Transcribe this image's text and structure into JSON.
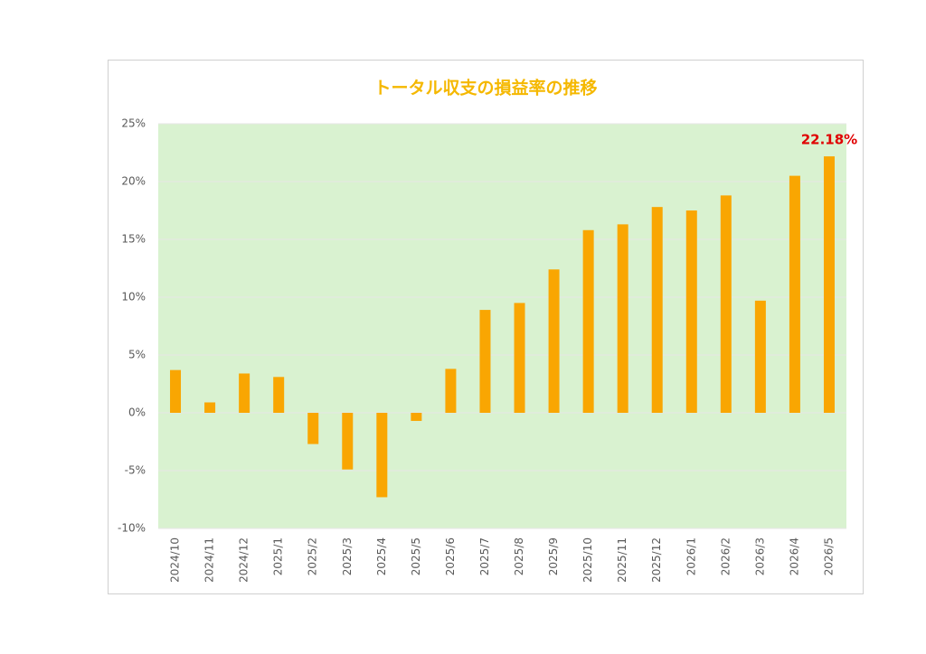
{
  "chart_data": {
    "type": "bar",
    "title": "トータル収支の損益率の推移",
    "categories": [
      "2024/10",
      "2024/11",
      "2024/12",
      "2025/1",
      "2025/2",
      "2025/3",
      "2025/4",
      "2025/5",
      "2025/6",
      "2025/7",
      "2025/8",
      "2025/9",
      "2025/10",
      "2025/11",
      "2025/12",
      "2026/1",
      "2026/2",
      "2026/3",
      "2026/4",
      "2026/5"
    ],
    "values": [
      3.7,
      0.9,
      3.4,
      3.1,
      -2.7,
      -4.9,
      -7.3,
      -0.7,
      3.8,
      8.9,
      9.5,
      12.4,
      15.8,
      16.3,
      17.8,
      17.5,
      18.8,
      9.7,
      20.5,
      22.18
    ],
    "value_labels": [
      null,
      null,
      null,
      null,
      null,
      null,
      null,
      null,
      null,
      null,
      null,
      null,
      null,
      null,
      null,
      null,
      null,
      null,
      null,
      "22.18%"
    ],
    "color": "#f9a602",
    "label_color": "#e00000",
    "plot_background": "#d9f2d0",
    "ylim": [
      -10,
      25
    ],
    "yticks": [
      {
        "value": -10,
        "label": "-10%"
      },
      {
        "value": -5,
        "label": "-5%"
      },
      {
        "value": 0,
        "label": "0%"
      },
      {
        "value": 5,
        "label": "5%"
      },
      {
        "value": 10,
        "label": "10%"
      },
      {
        "value": 15,
        "label": "15%"
      },
      {
        "value": 20,
        "label": "20%"
      },
      {
        "value": 25,
        "label": "25%"
      }
    ],
    "grid": true
  }
}
